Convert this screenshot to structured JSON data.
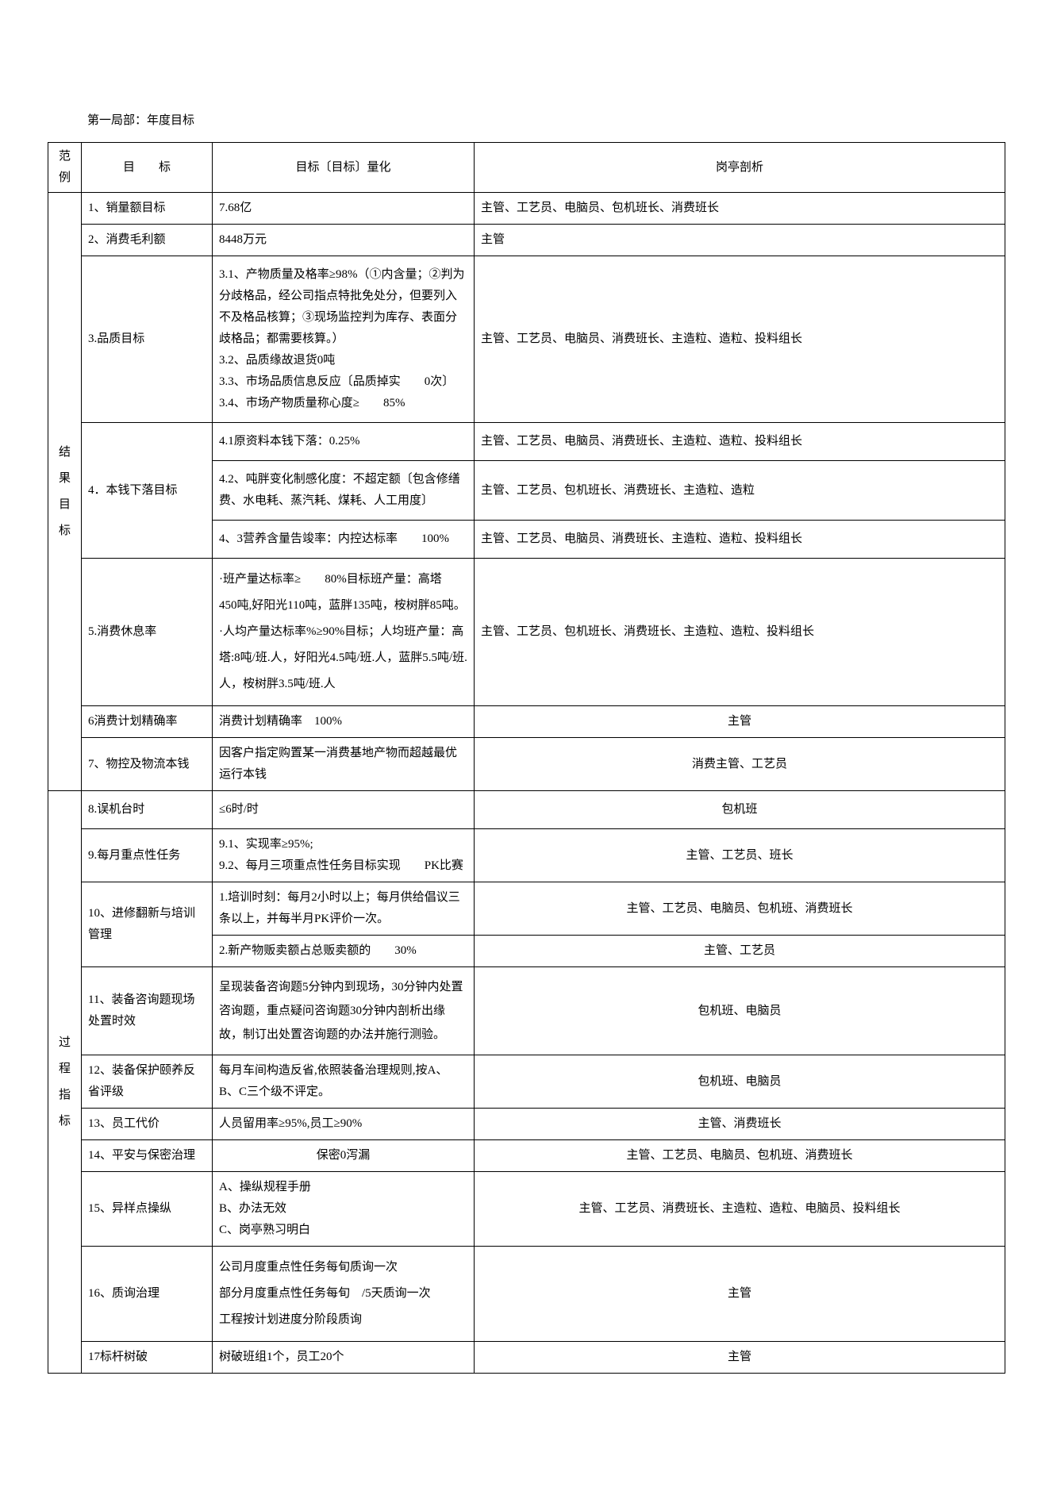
{
  "section_title": "第一局部：年度目标",
  "headers": {
    "category": "范例",
    "target": "目　　标",
    "measure": "目标〔目标〕量化",
    "analysis": "岗亭剖析"
  },
  "categories": {
    "result": "结果目标",
    "process": "过程指标"
  },
  "rows": {
    "r1": {
      "t": "1、销量额目标",
      "m": "7.68亿",
      "a": "主管、工艺员、电脑员、包机班长、消费班长"
    },
    "r2": {
      "t": "2、消费毛利额",
      "m": "8448万元",
      "a": "主管"
    },
    "r3": {
      "t": "3.品质目标",
      "m": "3.1、产物质量及格率≥98%（①内含量；②判为分歧格品，经公司指点特批免处分，但要列入不及格品核算；③现场监控判为库存、表面分歧格品；都需要核算。）\n3.2、品质缘故退货0吨\n3.3、市场品质信息反应〔品质掉实　　0次〕\n3.4、市场产物质量称心度≥　　85%",
      "a": "主管、工艺员、电脑员、消费班长、主造粒、造粒、投料组长"
    },
    "r4_t": "4．本钱下落目标",
    "r4a": {
      "m": "4.1原资料本钱下落：0.25%",
      "a": "主管、工艺员、电脑员、消费班长、主造粒、造粒、投料组长"
    },
    "r4b": {
      "m": "4.2、吨胖变化制感化度：不超定额〔包含修缮费、水电耗、蒸汽耗、煤耗、人工用度〕",
      "a": "主管、工艺员、包机班长、消费班长、主造粒、造粒"
    },
    "r4c": {
      "m": "4、3营养含量告竣率：内控达标率　　100%",
      "a": "主管、工艺员、电脑员、消费班长、主造粒、造粒、投料组长"
    },
    "r5": {
      "t": "5.消费休息率",
      "m": "·班产量达标率≥　　80%目标班产量：高塔　　450吨,好阳光110吨，蓝胖135吨，桉树胖85吨。\n·人均产量达标率%≥90%目标；人均班产量：高塔:8吨/班.人，好阳光4.5吨/班.人，蓝胖5.5吨/班.人，桉树胖3.5吨/班.人",
      "a": "主管、工艺员、包机班长、消费班长、主造粒、造粒、投料组长"
    },
    "r6": {
      "t": "6消费计划精确率",
      "m": "消费计划精确率　100%",
      "a": "主管"
    },
    "r7": {
      "t": "7、物控及物流本钱",
      "m": "因客户指定购置某一消费基地产物而超越最优运行本钱",
      "a": "消费主管、工艺员"
    },
    "r8": {
      "t": "8.误机台时",
      "m": "≤6时/时",
      "a": "包机班"
    },
    "r9": {
      "t": "9.每月重点性任务",
      "m": "9.1、实现率≥95%;\n9.2、每月三项重点性任务目标实现　　PK比赛",
      "a": "主管、工艺员、班长"
    },
    "r10_t": "10、进修翻新与培训管理",
    "r10a": {
      "m": "1.培训时刻：每月2小时以上；每月供给倡议三条以上，并每半月PK评价一次。",
      "a": "主管、工艺员、电脑员、包机班、消费班长"
    },
    "r10b": {
      "m": "2.新产物贩卖额占总贩卖额的　　30%",
      "a": "主管、工艺员"
    },
    "r11": {
      "t": "11、装备咨询题现场处置时效",
      "m": "呈现装备咨询题5分钟内到现场，30分钟内处置咨询题，重点疑问咨询题30分钟内剖析出缘故，制订出处置咨询题的办法并施行测验。",
      "a": "包机班、电脑员"
    },
    "r12": {
      "t": "12、装备保护颐养反省评级",
      "m": "每月车间构造反省,依照装备治理规则,按A、B、C三个级不评定。",
      "a": "包机班、电脑员"
    },
    "r13": {
      "t": "13、员工代价",
      "m": "人员留用率≥95%,员工≥90%",
      "a": "主管、消费班长"
    },
    "r14": {
      "t": "14、平安与保密治理",
      "m": "保密0泻漏",
      "a": "主管、工艺员、电脑员、包机班、消费班长"
    },
    "r15": {
      "t": "15、异样点操纵",
      "m": "A、操纵规程手册\nB、办法无效\nC、岗亭熟习明白",
      "a": "主管、工艺员、消费班长、主造粒、造粒、电脑员、投料组长"
    },
    "r16": {
      "t": "16、质询治理",
      "m": "公司月度重点性任务每旬质询一次\n部分月度重点性任务每旬　/5天质询一次\n工程按计划进度分阶段质询",
      "a": "主管"
    },
    "r17": {
      "t": "17标杆树破",
      "m": "树破班组1个，员工20个",
      "a": "主管"
    }
  }
}
